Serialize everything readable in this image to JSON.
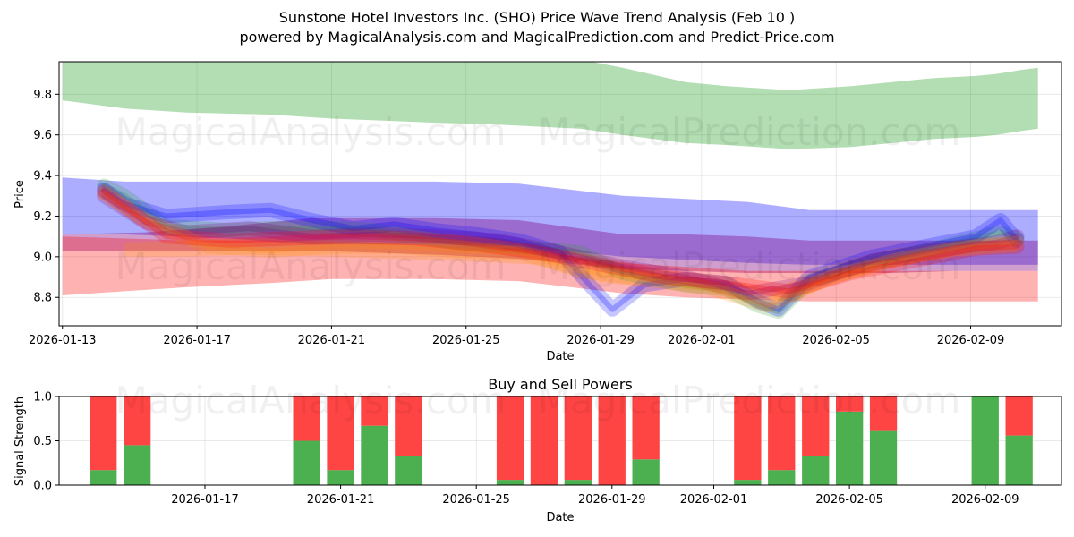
{
  "title_line1": "Sunstone Hotel Investors Inc. (SHO) Price Wave Trend Analysis (Feb 10 )",
  "title_line2": "powered by MagicalAnalysis.com and MagicalPrediction.com and Predict-Price.com",
  "watermarks": {
    "left": "MagicalAnalysis.com",
    "right": "MagicalPrediction.com"
  },
  "colors": {
    "green_band": "#2ca02c",
    "blue_band": "#0000ff",
    "purple_band": "#800080",
    "red_band": "#ff0000",
    "orange_band": "#ff8c00",
    "buy": "#4caf50",
    "sell": "#ff4444"
  },
  "chart_data": [
    {
      "type": "area",
      "title": "Sunstone Hotel Investors Inc. (SHO) Price Wave Trend Analysis (Feb 10 )",
      "xlabel": "Date",
      "ylabel": "Price",
      "xlim": [
        "2026-01-12.9",
        "2026-02-11.7"
      ],
      "ylim": [
        8.66,
        9.96
      ],
      "x_ticks": [
        "2026-01-13",
        "2026-01-17",
        "2026-01-21",
        "2026-01-25",
        "2026-01-29",
        "2026-02-01",
        "2026-02-05",
        "2026-02-09"
      ],
      "y_ticks": [
        8.8,
        9.0,
        9.2,
        9.4,
        9.6,
        9.8
      ],
      "grid": true,
      "bands": [
        {
          "name": "green forecast band",
          "color": "green",
          "x": [
            0,
            3,
            6,
            10,
            13,
            18,
            21,
            25,
            27,
            30,
            32,
            35,
            38,
            40,
            42,
            44,
            45,
            46.2,
            47
          ],
          "upper": [
            9.99,
            9.99,
            9.99,
            9.99,
            9.99,
            9.99,
            9.99,
            9.97,
            9.93,
            9.86,
            9.84,
            9.82,
            9.84,
            9.86,
            9.88,
            9.89,
            9.9,
            9.92,
            9.93
          ],
          "lower": [
            9.77,
            9.73,
            9.71,
            9.7,
            9.68,
            9.66,
            9.65,
            9.63,
            9.6,
            9.56,
            9.55,
            9.53,
            9.54,
            9.56,
            9.58,
            9.59,
            9.6,
            9.62,
            9.63
          ]
        },
        {
          "name": "blue forecast band",
          "color": "blue",
          "x": [
            0,
            3,
            8,
            12,
            18,
            22,
            27,
            29,
            33,
            36,
            40,
            43,
            47
          ],
          "upper": [
            9.39,
            9.37,
            9.37,
            9.37,
            9.37,
            9.36,
            9.3,
            9.29,
            9.27,
            9.23,
            9.23,
            9.23,
            9.23
          ],
          "lower": [
            9.11,
            9.11,
            9.09,
            9.06,
            9.06,
            9.05,
            9.0,
            8.99,
            8.97,
            8.96,
            8.96,
            8.96,
            8.96
          ]
        },
        {
          "name": "purple forecast band",
          "color": "purple",
          "x": [
            0,
            4,
            8,
            12,
            18,
            22,
            27,
            30,
            33,
            36,
            40,
            43,
            47
          ],
          "upper": [
            9.11,
            9.12,
            9.15,
            9.19,
            9.19,
            9.18,
            9.11,
            9.11,
            9.1,
            9.08,
            9.08,
            9.08,
            9.08
          ],
          "lower": [
            9.03,
            9.03,
            9.03,
            9.03,
            9.01,
            8.99,
            8.94,
            8.93,
            8.92,
            8.92,
            8.92,
            8.93,
            8.93
          ]
        },
        {
          "name": "red forecast band",
          "color": "red",
          "x": [
            0,
            3,
            6,
            10,
            13,
            18,
            22,
            27,
            30,
            33,
            36,
            40,
            44,
            47
          ],
          "upper": [
            9.1,
            9.09,
            9.08,
            9.08,
            9.07,
            9.06,
            9.04,
            8.97,
            8.95,
            8.93,
            8.93,
            8.93,
            8.93,
            8.93
          ],
          "lower": [
            8.81,
            8.83,
            8.85,
            8.87,
            8.89,
            8.89,
            8.88,
            8.82,
            8.8,
            8.79,
            8.78,
            8.78,
            8.78,
            8.78
          ]
        },
        {
          "name": "orange forecast band",
          "color": "orange",
          "x": [
            3,
            6,
            9,
            13,
            16,
            19,
            23,
            26,
            29,
            32,
            34,
            37,
            40,
            43,
            46
          ],
          "upper": [
            9.07,
            9.08,
            9.09,
            9.08,
            9.07,
            9.06,
            9.04,
            8.96,
            8.93,
            8.9,
            8.83,
            8.96,
            9.04,
            9.08,
            9.1
          ],
          "lower": [
            9.0,
            9.0,
            9.01,
            9.0,
            8.99,
            8.98,
            8.96,
            8.87,
            8.85,
            8.82,
            8.73,
            8.86,
            8.95,
            9.0,
            9.02
          ]
        }
      ],
      "price_waves": [
        {
          "color": "green",
          "x": [
            2,
            3,
            5,
            8,
            10,
            13,
            15,
            17,
            19,
            23,
            25,
            27,
            30,
            32,
            33.5,
            34.5,
            36,
            39,
            42,
            44,
            45.2,
            46
          ],
          "y": [
            9.35,
            9.3,
            9.15,
            9.13,
            9.14,
            9.14,
            9.13,
            9.1,
            9.07,
            9.04,
            9.02,
            8.92,
            8.86,
            8.84,
            8.76,
            8.73,
            8.88,
            8.97,
            9.04,
            9.09,
            9.12,
            9.09
          ]
        },
        {
          "color": "blue",
          "x": [
            2,
            3,
            5,
            8,
            10,
            12,
            14,
            16,
            18,
            20,
            22,
            24,
            25.5,
            26.5,
            28,
            30,
            32,
            33.5,
            34.5,
            36,
            39,
            42,
            44,
            45.2,
            46
          ],
          "y": [
            9.33,
            9.26,
            9.2,
            9.22,
            9.23,
            9.18,
            9.14,
            9.16,
            9.13,
            9.11,
            9.08,
            9.02,
            8.85,
            8.74,
            8.86,
            8.89,
            8.87,
            8.78,
            8.74,
            8.9,
            9.0,
            9.06,
            9.1,
            9.18,
            9.08
          ]
        },
        {
          "color": "purple",
          "x": [
            2,
            4,
            6,
            9,
            12,
            15,
            18,
            21,
            24,
            27,
            30,
            33,
            36,
            39,
            42,
            45,
            46
          ],
          "y": [
            9.3,
            9.17,
            9.12,
            9.14,
            9.1,
            9.11,
            9.1,
            9.08,
            9.02,
            8.95,
            8.9,
            8.82,
            8.87,
            8.98,
            9.03,
            9.07,
            9.1
          ]
        },
        {
          "color": "orange",
          "x": [
            2,
            4,
            7,
            10,
            13,
            16,
            19,
            22,
            25,
            28,
            31,
            34,
            37,
            40,
            43,
            46
          ],
          "y": [
            9.31,
            9.18,
            9.05,
            9.03,
            9.05,
            9.05,
            9.03,
            9.02,
            8.93,
            8.89,
            8.85,
            8.76,
            8.9,
            8.98,
            9.04,
            9.07
          ]
        },
        {
          "color": "red",
          "x": [
            2,
            5,
            8,
            11,
            14,
            17,
            20,
            23,
            26,
            29,
            32,
            35,
            38,
            41,
            44,
            46
          ],
          "y": [
            9.32,
            9.1,
            9.08,
            9.09,
            9.1,
            9.09,
            9.06,
            9.02,
            8.96,
            8.9,
            8.87,
            8.83,
            8.92,
            8.98,
            9.04,
            9.05
          ]
        }
      ]
    },
    {
      "type": "bar",
      "title": "Buy and Sell Powers",
      "xlabel": "Date",
      "ylabel": "Signal Strength",
      "ylim": [
        0.0,
        1.0
      ],
      "y_ticks": [
        "0.0",
        "0.5",
        "1.0"
      ],
      "x_ticks": [
        "2026-01-17",
        "2026-01-21",
        "2026-01-25",
        "2026-01-29",
        "2026-02-01",
        "2026-02-05",
        "2026-02-09"
      ],
      "categories": [
        "2026-01-14",
        "2026-01-15",
        "2026-01-20",
        "2026-01-21",
        "2026-01-22",
        "2026-01-23",
        "2026-01-26",
        "2026-01-27",
        "2026-01-28",
        "2026-01-29",
        "2026-01-30",
        "2026-02-02",
        "2026-02-03",
        "2026-02-04",
        "2026-02-05",
        "2026-02-06",
        "2026-02-09",
        "2026-02-10"
      ],
      "series": [
        {
          "name": "Buy",
          "values": [
            0.17,
            0.45,
            0.5,
            0.17,
            0.67,
            0.33,
            0.06,
            0.0,
            0.06,
            0.0,
            0.29,
            0.06,
            0.17,
            0.33,
            0.83,
            0.61,
            1.0,
            0.56
          ]
        },
        {
          "name": "Sell",
          "values": [
            0.83,
            0.55,
            0.5,
            0.83,
            0.33,
            0.67,
            0.94,
            1.0,
            0.94,
            1.0,
            0.71,
            0.94,
            0.83,
            0.67,
            0.17,
            0.39,
            0.0,
            0.44
          ]
        }
      ]
    }
  ]
}
